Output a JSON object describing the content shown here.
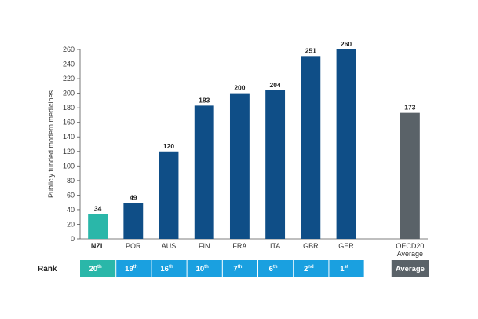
{
  "chart_data": {
    "type": "bar",
    "title": "",
    "xlabel": "",
    "ylabel": "Publicly funded modern medicines",
    "ylim": [
      0,
      260
    ],
    "yticks": [
      0,
      20,
      40,
      60,
      80,
      100,
      120,
      140,
      160,
      180,
      200,
      220,
      240,
      260
    ],
    "grid": false,
    "categories": [
      "NZL",
      "POR",
      "AUS",
      "FIN",
      "FRA",
      "ITA",
      "GBR",
      "GER",
      "OECD20 Average"
    ],
    "values": [
      34,
      49,
      120,
      183,
      200,
      204,
      251,
      260,
      173
    ],
    "bar_colors": [
      "#2ab7a9",
      "#0f4e87",
      "#0f4e87",
      "#0f4e87",
      "#0f4e87",
      "#0f4e87",
      "#0f4e87",
      "#0f4e87",
      "#5a6268"
    ],
    "category_label_lines": [
      [
        "NZL"
      ],
      [
        "POR"
      ],
      [
        "AUS"
      ],
      [
        "FIN"
      ],
      [
        "FRA"
      ],
      [
        "ITA"
      ],
      [
        "GBR"
      ],
      [
        "GER"
      ],
      [
        "OECD20",
        "Average"
      ]
    ],
    "highlight_category": "NZL"
  },
  "rank_row": {
    "label": "Rank",
    "cells": [
      {
        "num": "20",
        "sup": "th",
        "color": "#2ab7a9"
      },
      {
        "num": "19",
        "sup": "th",
        "color": "#1aa0e0"
      },
      {
        "num": "16",
        "sup": "th",
        "color": "#1aa0e0"
      },
      {
        "num": "10",
        "sup": "th",
        "color": "#1aa0e0"
      },
      {
        "num": "7",
        "sup": "th",
        "color": "#1aa0e0"
      },
      {
        "num": "6",
        "sup": "th",
        "color": "#1aa0e0"
      },
      {
        "num": "2",
        "sup": "nd",
        "color": "#1aa0e0"
      },
      {
        "num": "1",
        "sup": "st",
        "color": "#1aa0e0"
      },
      {
        "num": "Average",
        "sup": "",
        "color": "#5a6268"
      }
    ]
  },
  "colors": {
    "axis": "#555555",
    "highlight": "#2ab7a9",
    "primary_bar": "#0f4e87",
    "average_bar": "#5a6268",
    "rank_fill": "#1aa0e0"
  }
}
